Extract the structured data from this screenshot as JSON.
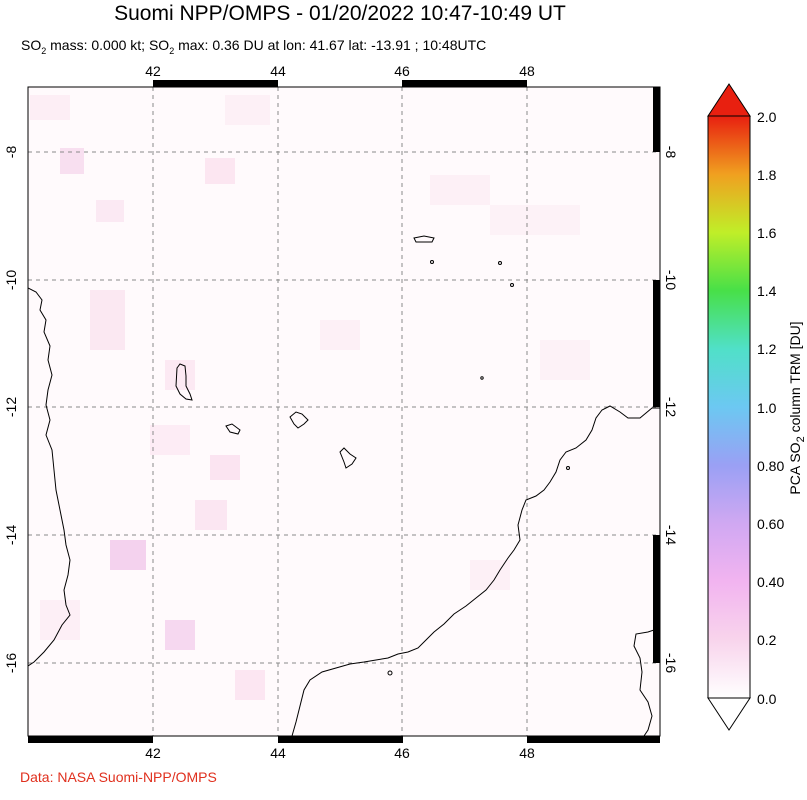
{
  "header": {
    "title": "Suomi NPP/OMPS - 01/20/2022 10:47-10:49 UT",
    "subtitle_prefix": "SO",
    "subtitle_sub": "2",
    "subtitle_mid1": " mass: 0.000 kt; SO",
    "subtitle_sub2": "2",
    "subtitle_mid2": " max: 0.36 DU at lon: 41.67 lat: -13.91 ; 10:48UTC"
  },
  "map": {
    "lon_range": [
      40.0,
      50.2
    ],
    "lat_range": [
      -17.0,
      -6.9
    ],
    "lon_ticks": [
      42,
      44,
      46,
      48
    ],
    "lat_ticks": [
      -8,
      -10,
      -12,
      -14,
      -16
    ],
    "lon_tick_labels": [
      "42",
      "44",
      "46",
      "48"
    ],
    "lat_tick_labels": [
      "-8",
      "-10",
      "-12",
      "-14",
      "-16"
    ],
    "grid": "dashed"
  },
  "colorbar": {
    "label_main": "PCA SO",
    "label_sub": "2",
    "label_end": " column TRM [DU]",
    "min": 0.0,
    "max": 2.0,
    "tick_labels": [
      "2.0",
      "1.8",
      "1.6",
      "1.4",
      "1.2",
      "1.0",
      "0.80",
      "0.60",
      "0.40",
      "0.2",
      "0.0"
    ],
    "colors": [
      "#ffffff",
      "#f7c6e6",
      "#e4a3f0",
      "#9a9af0",
      "#66ccf0",
      "#4fe0c0",
      "#40e040",
      "#c0f020",
      "#f0e020",
      "#f09020",
      "#e82010"
    ]
  },
  "footer": {
    "credit": "Data: NASA Suomi-NPP/OMPS"
  }
}
